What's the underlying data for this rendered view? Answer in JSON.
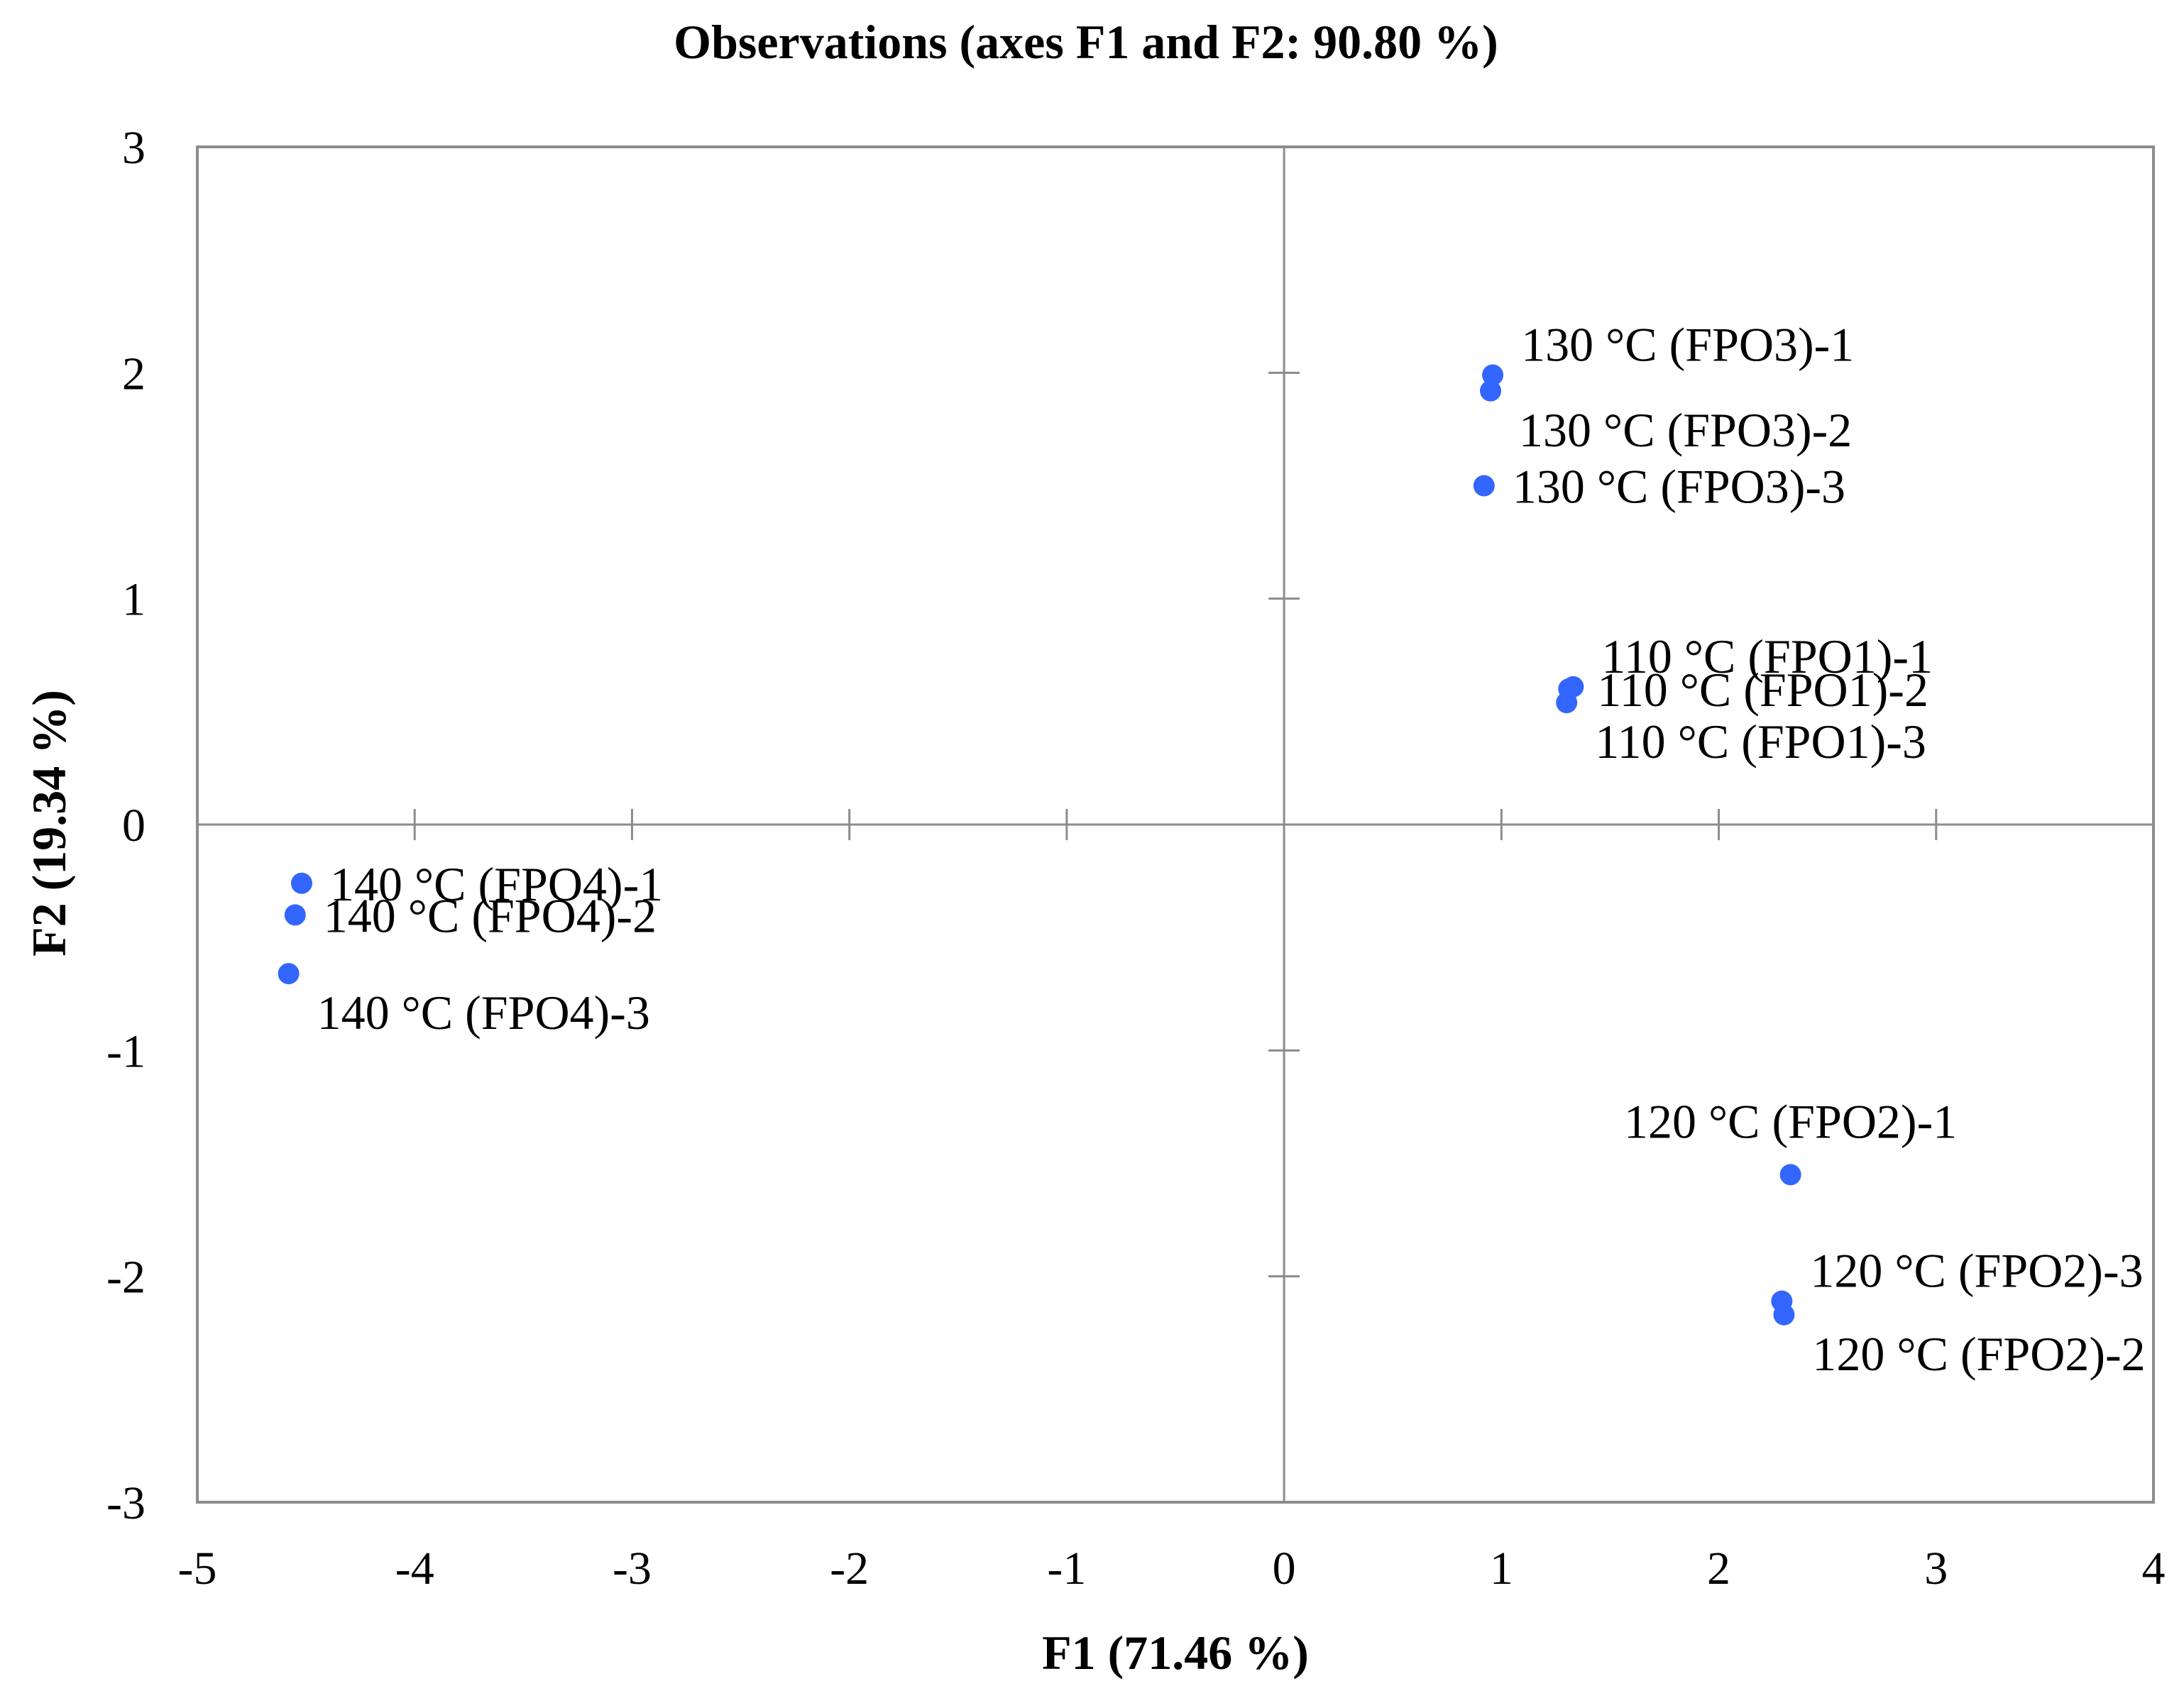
{
  "colors": {
    "point": "#3366ff",
    "frame": "#8c8c8c",
    "text": "#000000",
    "background": "#ffffff"
  },
  "chart_data": {
    "type": "scatter",
    "title": "Observations (axes F1 and F2: 90.80 %)",
    "xlabel": "F1 (71.46 %)",
    "ylabel": "F2 (19.34 %)",
    "xlim": [
      -5,
      4
    ],
    "ylim": [
      -3,
      3
    ],
    "x_ticks": [
      -5,
      -4,
      -3,
      -2,
      -1,
      0,
      1,
      2,
      3,
      4
    ],
    "y_ticks": [
      -3,
      -2,
      -1,
      0,
      1,
      2,
      3
    ],
    "grid": false,
    "legend": "none",
    "points": [
      {
        "label": "110 °C (FPO1)-1",
        "x": 1.33,
        "y": 0.61,
        "label_pos": "above-right"
      },
      {
        "label": "110 °C (FPO1)-2",
        "x": 1.31,
        "y": 0.6,
        "label_pos": "right"
      },
      {
        "label": "110 °C (FPO1)-3",
        "x": 1.3,
        "y": 0.54,
        "label_pos": "below-right"
      },
      {
        "label": "120 °C (FPO2)-1",
        "x": 2.33,
        "y": -1.55,
        "label_pos": "above"
      },
      {
        "label": "120 °C (FPO2)-2",
        "x": 2.3,
        "y": -2.17,
        "label_pos": "below-right"
      },
      {
        "label": "120 °C (FPO2)-3",
        "x": 2.29,
        "y": -2.11,
        "label_pos": "above-right"
      },
      {
        "label": "130 °C (FPO3)-1",
        "x": 0.96,
        "y": 1.99,
        "label_pos": "above-right"
      },
      {
        "label": "130 °C (FPO3)-2",
        "x": 0.95,
        "y": 1.92,
        "label_pos": "below-right"
      },
      {
        "label": "130 °C (FPO3)-3",
        "x": 0.92,
        "y": 1.5,
        "label_pos": "right"
      },
      {
        "label": "140 °C (FPO4)-1",
        "x": -4.52,
        "y": -0.26,
        "label_pos": "right"
      },
      {
        "label": "140 °C (FPO4)-2",
        "x": -4.55,
        "y": -0.4,
        "label_pos": "right"
      },
      {
        "label": "140 °C (FPO4)-3",
        "x": -4.58,
        "y": -0.66,
        "label_pos": "below-right"
      }
    ]
  }
}
